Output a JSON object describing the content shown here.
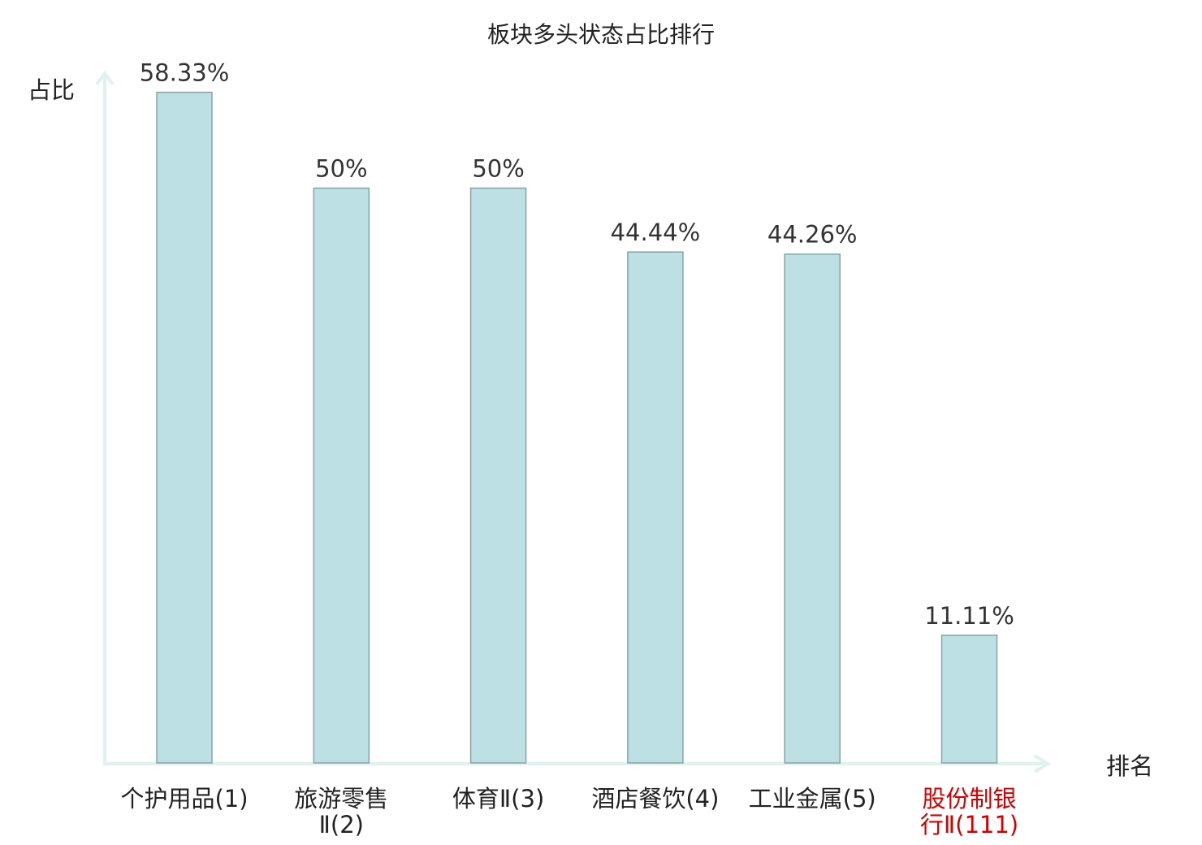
{
  "chart_data": {
    "type": "bar",
    "title": "板块多头状态占比排行",
    "ylabel": "占比",
    "xlabel": "排名",
    "ylim": [
      0,
      60
    ],
    "grid": false,
    "unit": "%",
    "categories": [
      {
        "name_lines": [
          "个护用品(1)"
        ],
        "rank": "(1)",
        "highlight": false
      },
      {
        "name_lines": [
          "旅游零售",
          "Ⅱ(2)"
        ],
        "rank": "(2)",
        "highlight": false
      },
      {
        "name_lines": [
          "体育Ⅱ(3)"
        ],
        "rank": "(3)",
        "highlight": false
      },
      {
        "name_lines": [
          "酒店餐饮(4)"
        ],
        "rank": "(4)",
        "highlight": false
      },
      {
        "name_lines": [
          "工业金属(5)"
        ],
        "rank": "(5)",
        "highlight": false
      },
      {
        "name_lines": [
          "股份制银",
          "行Ⅱ(111)"
        ],
        "rank": "(111)",
        "highlight": true
      }
    ],
    "values": [
      58.33,
      50,
      50,
      44.44,
      44.26,
      11.11
    ],
    "value_labels": [
      "58.33%",
      "50%",
      "50%",
      "44.44%",
      "44.26%",
      "11.11%"
    ]
  },
  "colors": {
    "bar_fill": "#bce0e3",
    "bar_stroke": "#86a4a7",
    "axis": "#dff2ef",
    "highlight": "#d40000"
  }
}
